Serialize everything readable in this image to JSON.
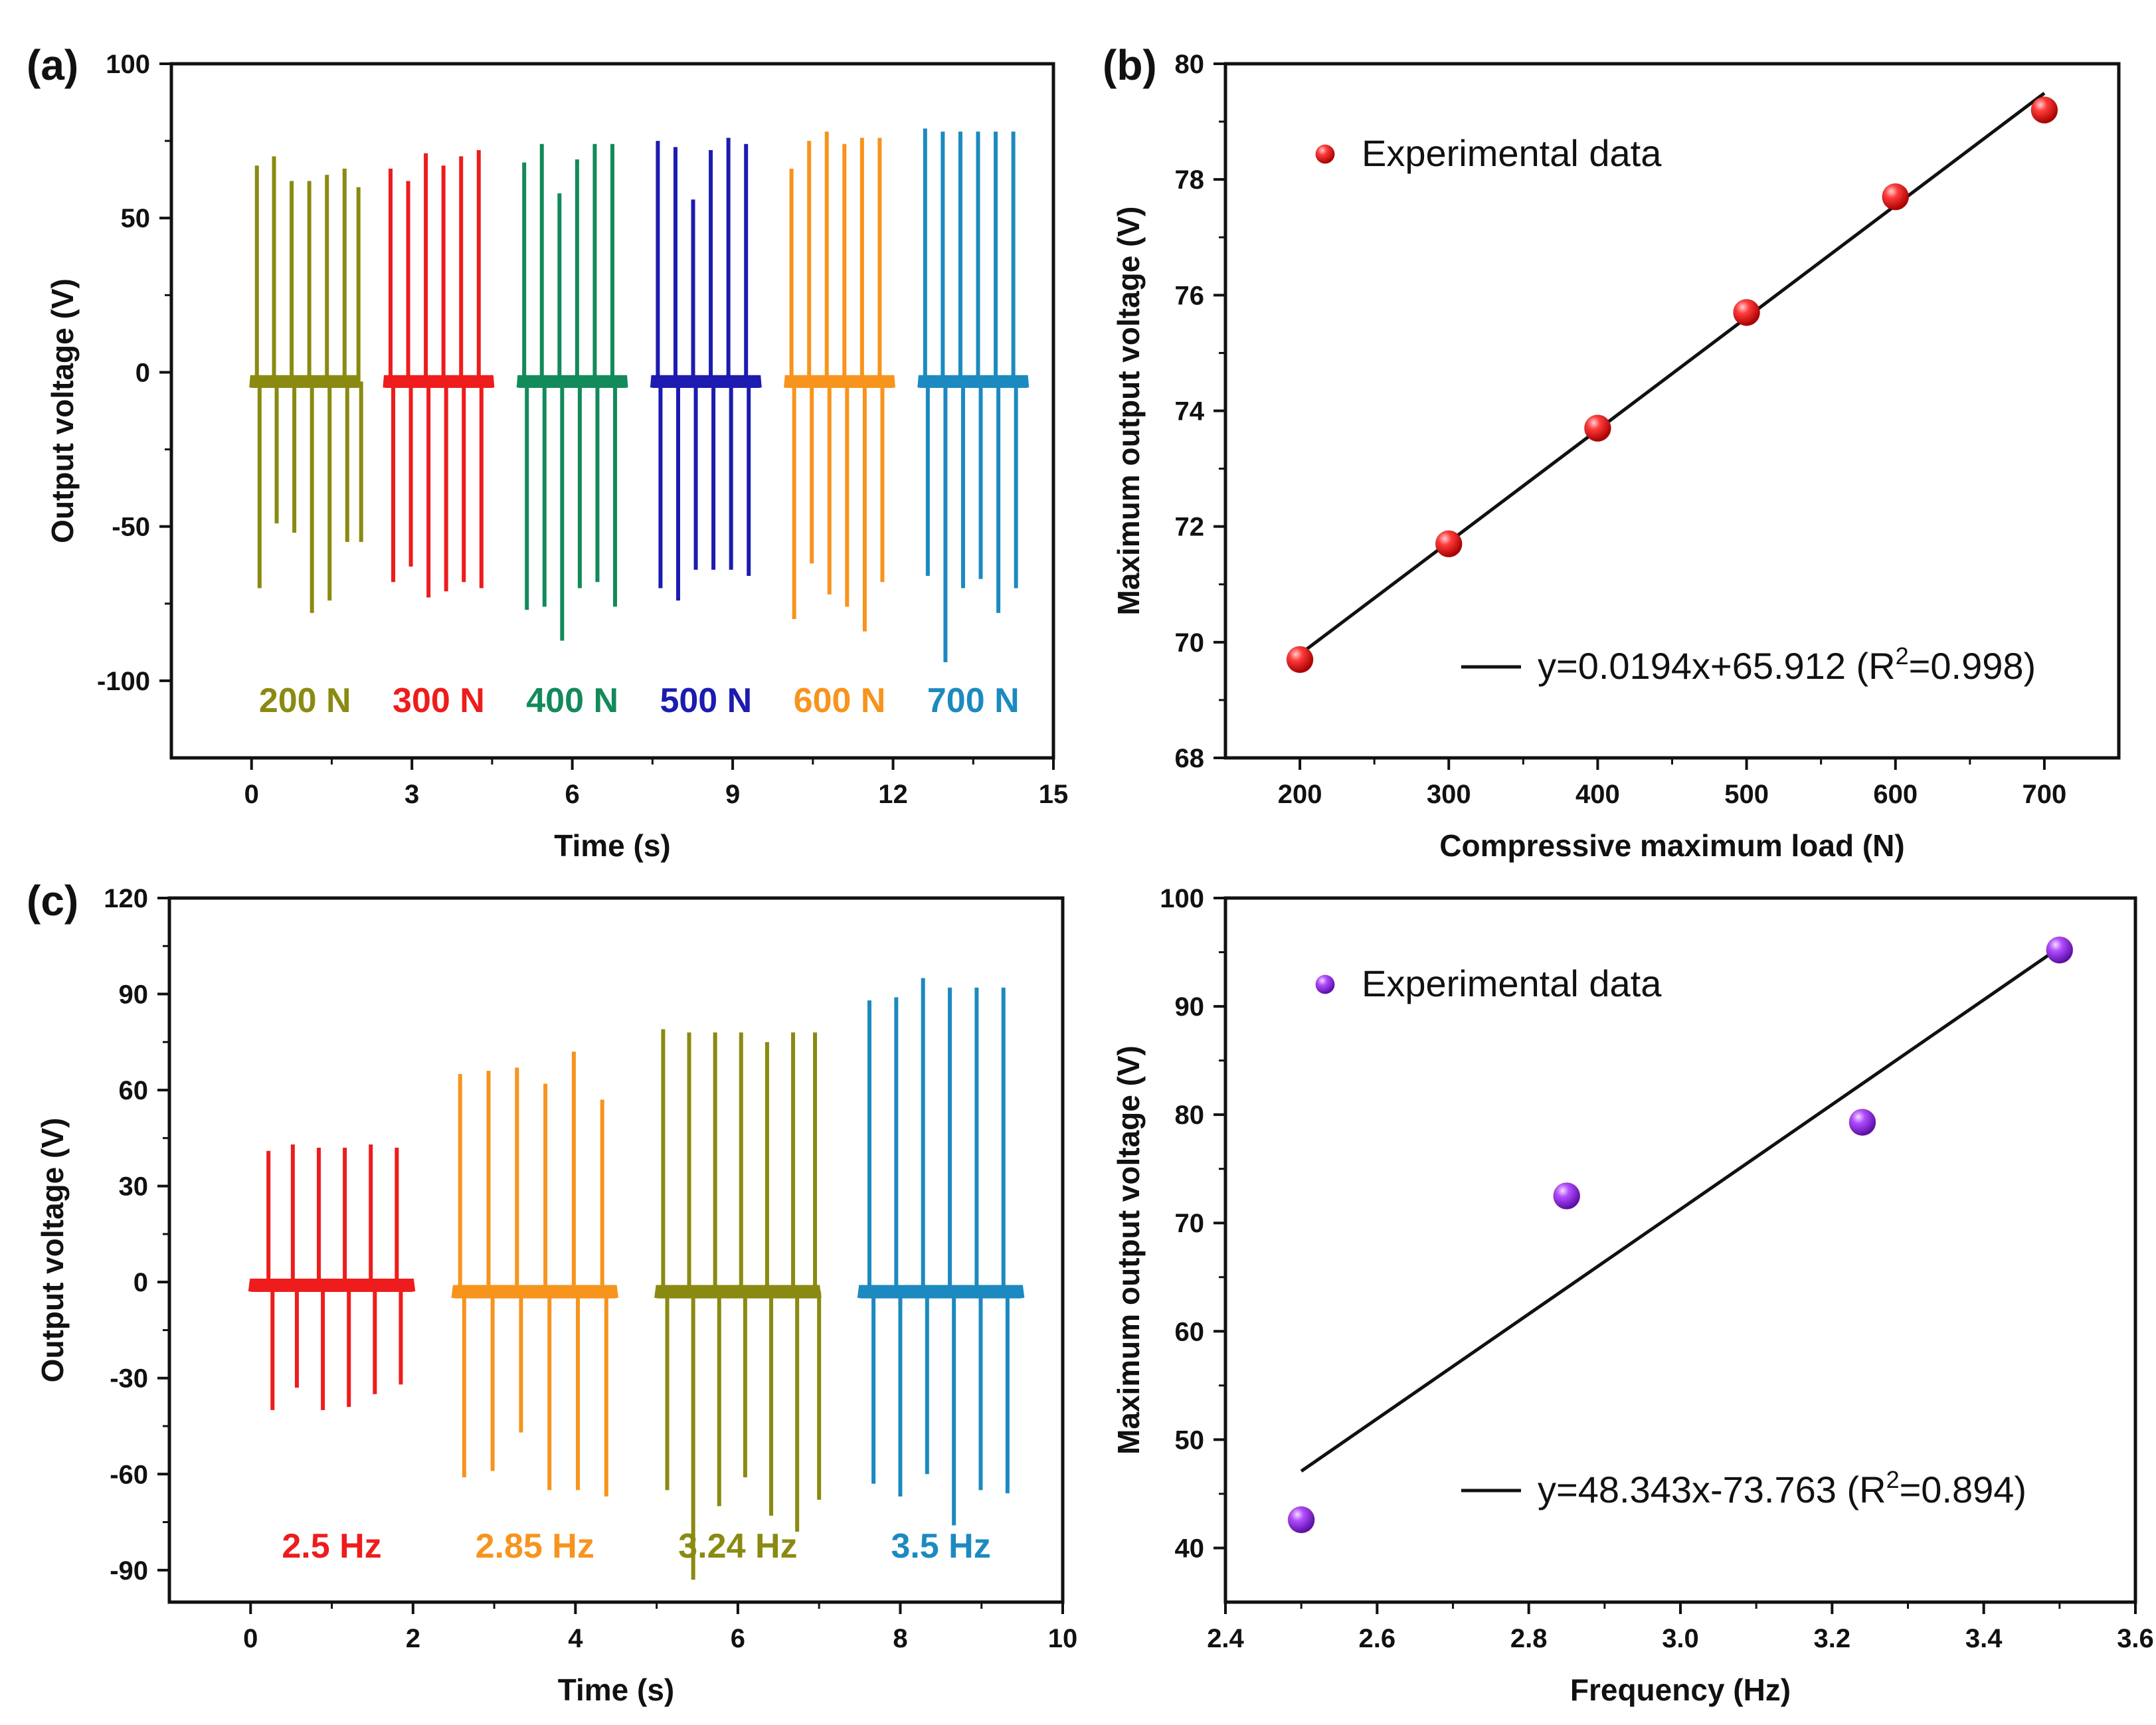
{
  "chart_data": [
    {
      "panel": "(a)",
      "type": "line",
      "title": "",
      "xlabel": "Time (s)",
      "ylabel": "Output voltage (V)",
      "xlim": [
        -1.5,
        15
      ],
      "ylim": [
        -125,
        100
      ],
      "xticks": [
        0,
        3,
        6,
        9,
        12,
        15
      ],
      "yticks": [
        -100,
        -50,
        0,
        50,
        100
      ],
      "series": [
        {
          "name": "200 N",
          "label": "200 N",
          "color": "#8a8a12",
          "t_start": 0.0,
          "t_end": 2.0,
          "baseline": -3,
          "peak_times": [
            0.1,
            0.42,
            0.75,
            1.08,
            1.41,
            1.74,
            2.0
          ],
          "peaks": [
            67,
            70,
            62,
            62,
            64,
            66,
            60
          ],
          "troughs": [
            -70,
            -49,
            -52,
            -78,
            -74,
            -55,
            -55
          ]
        },
        {
          "name": "300 N",
          "label": "300 N",
          "color": "#ee1c1c",
          "t_start": 2.5,
          "t_end": 4.5,
          "baseline": -3,
          "peak_times": [
            2.6,
            2.93,
            3.26,
            3.59,
            3.92,
            4.25
          ],
          "peaks": [
            66,
            62,
            71,
            67,
            70,
            72
          ],
          "troughs": [
            -68,
            -63,
            -73,
            -71,
            -68,
            -70
          ]
        },
        {
          "name": "400 N",
          "label": "400 N",
          "color": "#138a5a",
          "t_start": 5.0,
          "t_end": 7.0,
          "baseline": -3,
          "peak_times": [
            5.1,
            5.43,
            5.76,
            6.09,
            6.42,
            6.75
          ],
          "peaks": [
            68,
            74,
            58,
            69,
            74,
            74
          ],
          "troughs": [
            -77,
            -76,
            -87,
            -70,
            -68,
            -76
          ]
        },
        {
          "name": "500 N",
          "label": "500 N",
          "color": "#1c1cb0",
          "t_start": 7.5,
          "t_end": 9.5,
          "baseline": -3,
          "peak_times": [
            7.6,
            7.93,
            8.26,
            8.59,
            8.92,
            9.25
          ],
          "peaks": [
            75,
            73,
            56,
            72,
            76,
            74
          ],
          "troughs": [
            -70,
            -74,
            -64,
            -64,
            -64,
            -66
          ]
        },
        {
          "name": "600 N",
          "label": "600 N",
          "color": "#f7941d",
          "t_start": 10.0,
          "t_end": 12.0,
          "baseline": -3,
          "peak_times": [
            10.1,
            10.43,
            10.76,
            11.09,
            11.42,
            11.75
          ],
          "peaks": [
            66,
            75,
            78,
            74,
            76,
            76
          ],
          "troughs": [
            -80,
            -62,
            -72,
            -76,
            -84,
            -68
          ]
        },
        {
          "name": "700 N",
          "label": "700 N",
          "color": "#1c8ac0",
          "t_start": 12.5,
          "t_end": 14.5,
          "baseline": -3,
          "peak_times": [
            12.6,
            12.93,
            13.26,
            13.59,
            13.92,
            14.25
          ],
          "peaks": [
            79,
            78,
            78,
            78,
            78,
            78
          ],
          "troughs": [
            -66,
            -94,
            -70,
            -67,
            -78,
            -70
          ]
        }
      ]
    },
    {
      "panel": "(b)",
      "type": "scatter",
      "title": "",
      "xlabel": "Compressive maximum load (N)",
      "ylabel": "Maximum output voltage (V)",
      "xlim": [
        150,
        750
      ],
      "ylim": [
        68,
        80
      ],
      "xticks": [
        200,
        300,
        400,
        500,
        600,
        700
      ],
      "yticks": [
        68,
        70,
        72,
        74,
        76,
        78,
        80
      ],
      "x": [
        200,
        300,
        400,
        500,
        600,
        700
      ],
      "y": [
        69.7,
        71.7,
        73.7,
        75.7,
        77.7,
        79.2
      ],
      "marker_color": "#ee1111",
      "legend": {
        "marker": "Experimental data",
        "line": "y=0.0194x+65.912 (R",
        "line_sup": "2",
        "line_tail": "=0.998)"
      },
      "fit": {
        "slope": 0.0194,
        "intercept": 65.912,
        "r2": 0.998,
        "x_range": [
          200,
          700
        ]
      }
    },
    {
      "panel": "(c)",
      "type": "line",
      "title": "",
      "xlabel": "Time (s)",
      "ylabel": "Output voltage (V)",
      "xlim": [
        -1,
        10
      ],
      "ylim": [
        -100,
        120
      ],
      "xticks": [
        0,
        2,
        4,
        6,
        8,
        10
      ],
      "yticks": [
        -90,
        -60,
        -30,
        0,
        30,
        60,
        90,
        120
      ],
      "series": [
        {
          "name": "2.5 Hz",
          "label": "2.5 Hz",
          "color": "#ee1c1c",
          "t_start": 0.0,
          "t_end": 2.0,
          "baseline": -1,
          "peak_times": [
            0.22,
            0.52,
            0.84,
            1.16,
            1.48,
            1.8
          ],
          "peaks": [
            41,
            43,
            42,
            42,
            43,
            42
          ],
          "troughs": [
            -40,
            -33,
            -40,
            -39,
            -35,
            -32
          ]
        },
        {
          "name": "2.85 Hz",
          "label": "2.85 Hz",
          "color": "#f7941d",
          "t_start": 2.5,
          "t_end": 4.5,
          "baseline": -3,
          "peak_times": [
            2.58,
            2.93,
            3.28,
            3.63,
            3.98,
            4.33
          ],
          "peaks": [
            65,
            66,
            67,
            62,
            72,
            57
          ],
          "troughs": [
            -61,
            -59,
            -47,
            -65,
            -65,
            -67
          ]
        },
        {
          "name": "3.24 Hz",
          "label": "3.24 Hz",
          "color": "#8a8a12",
          "t_start": 5.0,
          "t_end": 7.0,
          "baseline": -3,
          "peak_times": [
            5.08,
            5.4,
            5.72,
            6.04,
            6.36,
            6.68,
            6.95
          ],
          "peaks": [
            79,
            78,
            78,
            78,
            75,
            78,
            78
          ],
          "troughs": [
            -65,
            -93,
            -70,
            -61,
            -73,
            -78,
            -68
          ]
        },
        {
          "name": "3.5 Hz",
          "label": "3.5 Hz",
          "color": "#1c8ac0",
          "t_start": 7.5,
          "t_end": 9.5,
          "baseline": -3,
          "peak_times": [
            7.62,
            7.95,
            8.28,
            8.61,
            8.94,
            9.27
          ],
          "peaks": [
            88,
            89,
            95,
            92,
            92,
            92
          ],
          "troughs": [
            -63,
            -67,
            -60,
            -76,
            -65,
            -66
          ]
        }
      ]
    },
    {
      "panel": "",
      "type": "scatter",
      "title": "",
      "xlabel": "Frequency (Hz)",
      "ylabel": "Maximum output voltage (V)",
      "xlim": [
        2.4,
        3.6
      ],
      "ylim": [
        35,
        100
      ],
      "xticks": [
        2.4,
        2.6,
        2.8,
        3.0,
        3.2,
        3.4,
        3.6
      ],
      "xtick_labels": [
        "2.4",
        "2.6",
        "2.8",
        "3.0",
        "3.2",
        "3.4",
        "3.6"
      ],
      "yticks": [
        40,
        50,
        60,
        70,
        80,
        90,
        100
      ],
      "x": [
        2.5,
        2.85,
        3.24,
        3.5
      ],
      "y": [
        42.6,
        72.5,
        79.3,
        95.2
      ],
      "marker_color": "#9933ee",
      "legend": {
        "marker": "Experimental data",
        "line": "y=48.343x-73.763 (R",
        "line_sup": "2",
        "line_tail": "=0.894)"
      },
      "fit": {
        "slope": 48.343,
        "intercept": -73.763,
        "r2": 0.894,
        "x_range": [
          2.5,
          3.5
        ]
      }
    }
  ]
}
